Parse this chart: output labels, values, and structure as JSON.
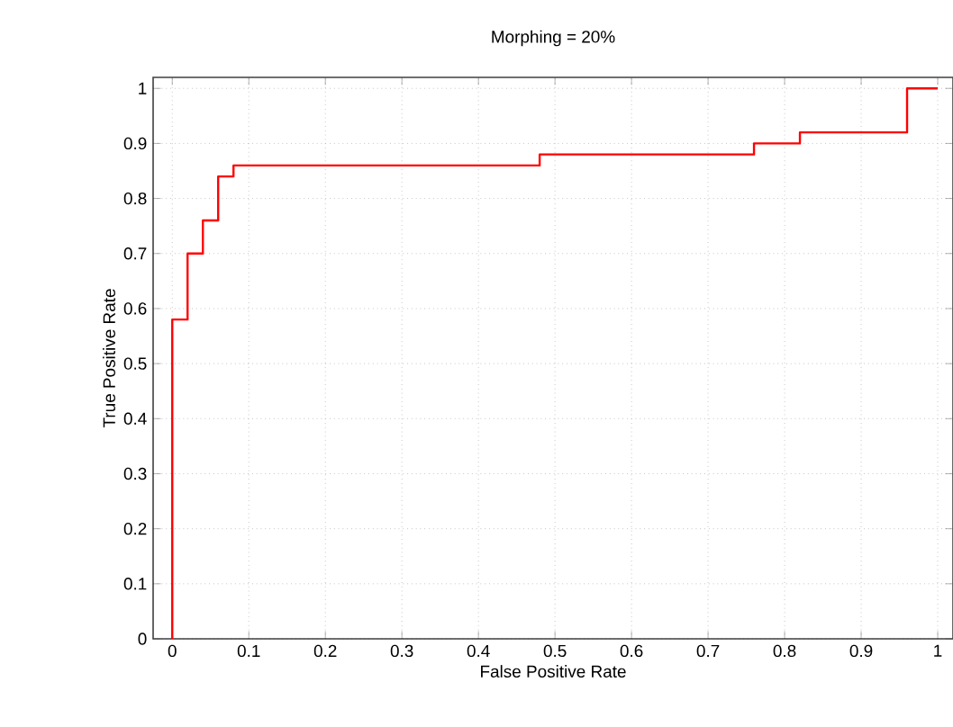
{
  "chart_data": {
    "type": "step",
    "title": "Morphing = 20%",
    "xlabel": "False Positive Rate",
    "ylabel": "True Positive Rate",
    "x": [
      0,
      0,
      0.02,
      0.04,
      0.06,
      0.08,
      0.48,
      0.76,
      0.82,
      0.96,
      1.0
    ],
    "values": [
      0,
      0.58,
      0.7,
      0.76,
      0.84,
      0.86,
      0.88,
      0.9,
      0.92,
      1.0,
      1.0
    ],
    "color": "#ff0000",
    "xlim": [
      -0.025,
      1.02
    ],
    "ylim": [
      0,
      1.02
    ],
    "xticks": [
      0,
      0.1,
      0.2,
      0.3,
      0.4,
      0.5,
      0.6,
      0.7,
      0.8,
      0.9,
      1
    ],
    "yticks": [
      0,
      0.1,
      0.2,
      0.3,
      0.4,
      0.5,
      0.6,
      0.7,
      0.8,
      0.9,
      1
    ],
    "grid": true
  }
}
